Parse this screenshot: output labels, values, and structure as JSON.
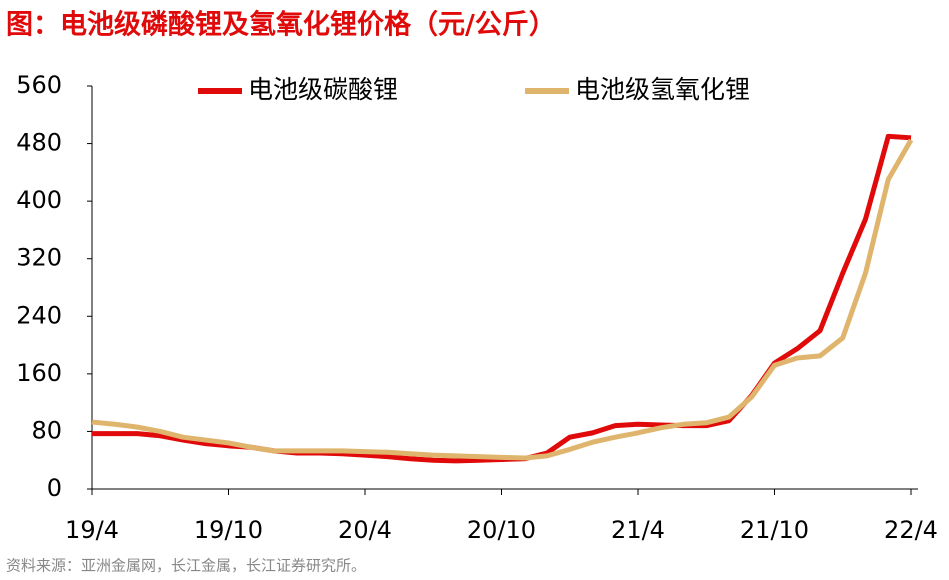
{
  "chart_data": {
    "type": "line",
    "title": "图：电池级磷酸锂及氢氧化锂价格（元/公斤）",
    "source": "资料来源：亚洲金属网，长江金属，长江证券研究所。",
    "categories": [
      "19/4",
      null,
      null,
      null,
      null,
      null,
      "19/10",
      null,
      null,
      null,
      null,
      null,
      "20/4",
      null,
      null,
      null,
      null,
      null,
      "20/10",
      null,
      null,
      null,
      null,
      null,
      "21/4",
      null,
      null,
      null,
      null,
      null,
      "21/10",
      null,
      null,
      null,
      null,
      null,
      "22/4"
    ],
    "series": [
      {
        "name": "电池级碳酸锂",
        "color": "#e00a0a",
        "values": [
          77,
          77,
          77,
          74,
          68,
          63,
          60,
          58,
          53,
          50,
          50,
          49,
          47,
          45,
          42,
          40,
          39,
          40,
          41,
          42,
          50,
          72,
          78,
          88,
          90,
          89,
          88,
          88,
          95,
          130,
          175,
          195,
          220,
          300,
          375,
          490,
          488
        ]
      },
      {
        "name": "电池级氢氧化锂",
        "color": "#dfb56e",
        "values": [
          93,
          90,
          86,
          80,
          72,
          68,
          64,
          58,
          53,
          53,
          53,
          53,
          52,
          51,
          49,
          47,
          46,
          45,
          44,
          43,
          46,
          55,
          65,
          72,
          78,
          85,
          90,
          92,
          100,
          128,
          172,
          182,
          185,
          210,
          300,
          430,
          485
        ]
      }
    ],
    "ylim": [
      0,
      560
    ],
    "yticks": [
      0,
      80,
      160,
      240,
      320,
      400,
      480,
      560
    ],
    "grid": false,
    "legend": "top"
  }
}
